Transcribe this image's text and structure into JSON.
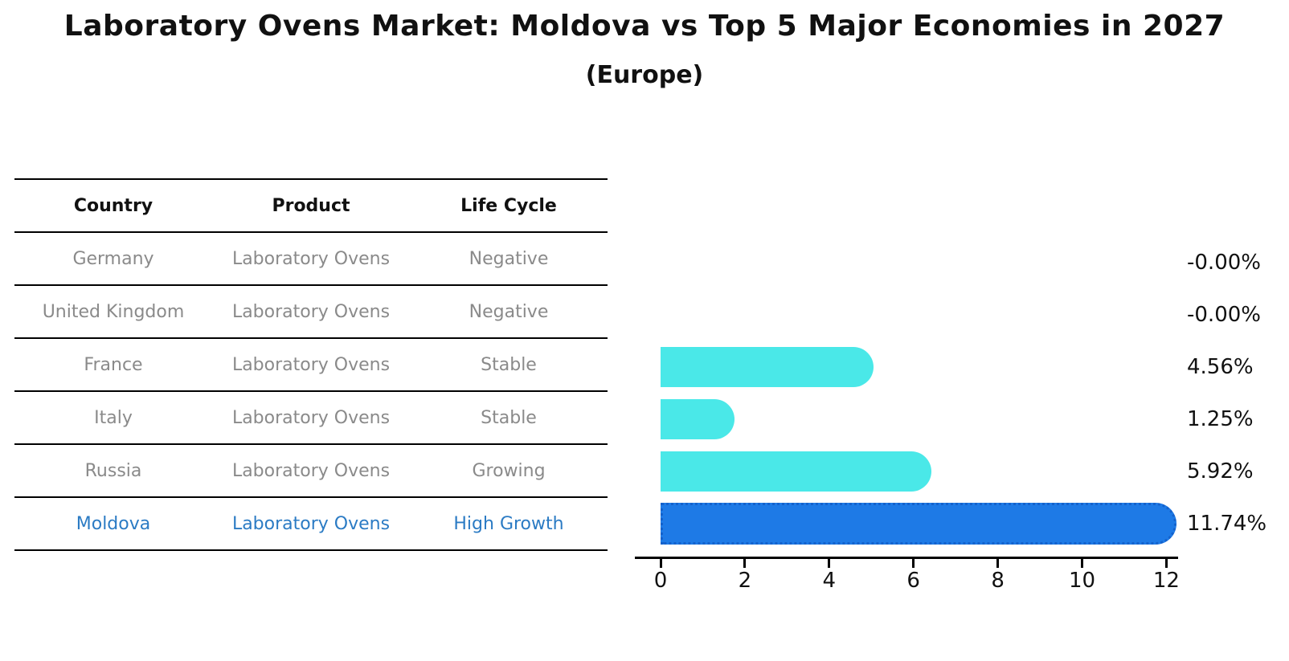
{
  "header": {
    "title": "Laboratory Ovens Market: Moldova vs Top 5 Major Economies in 2027",
    "subtitle": "(Europe)"
  },
  "table": {
    "headers": [
      "Country",
      "Product",
      "Life Cycle"
    ],
    "rows": [
      {
        "country": "Germany",
        "product": "Laboratory Ovens",
        "life_cycle": "Negative",
        "highlight": false
      },
      {
        "country": "United Kingdom",
        "product": "Laboratory Ovens",
        "life_cycle": "Negative",
        "highlight": false
      },
      {
        "country": "France",
        "product": "Laboratory Ovens",
        "life_cycle": "Stable",
        "highlight": false
      },
      {
        "country": "Italy",
        "product": "Laboratory Ovens",
        "life_cycle": "Stable",
        "highlight": false
      },
      {
        "country": "Russia",
        "product": "Laboratory Ovens",
        "life_cycle": "Growing",
        "highlight": false
      },
      {
        "country": "Moldova",
        "product": "Laboratory Ovens",
        "life_cycle": "High Growth",
        "highlight": true
      }
    ]
  },
  "chart_data": {
    "type": "bar",
    "orientation": "horizontal",
    "title": "Laboratory Ovens Market: Moldova vs Top 5 Major Economies in 2027",
    "subtitle": "(Europe)",
    "categories": [
      "Germany",
      "United Kingdom",
      "France",
      "Italy",
      "Russia",
      "Moldova"
    ],
    "values": [
      -0.0,
      -0.0,
      4.56,
      1.25,
      5.92,
      11.74
    ],
    "value_labels": [
      "-0.00%",
      "-0.00%",
      "4.56%",
      "1.25%",
      "5.92%",
      "11.74%"
    ],
    "xlabel": "",
    "ylabel": "",
    "xlim": [
      0,
      12
    ],
    "x_ticks": [
      0,
      2,
      4,
      6,
      8,
      10,
      12
    ],
    "x_tick_labels": [
      "0",
      "2",
      "4",
      "6",
      "8",
      "10",
      "12"
    ],
    "grid": false,
    "legend": false,
    "bar_colors": [
      "#4ae8e8",
      "#4ae8e8",
      "#4ae8e8",
      "#4ae8e8",
      "#4ae8e8",
      "#1e7ae6"
    ],
    "highlight_index": 5,
    "highlight_border_color": "#1462cc"
  },
  "colors": {
    "bar_cyan": "#4ae8e8",
    "bar_blue": "#1e7ae6",
    "bar_blue_border": "#1462cc",
    "highlight_text": "#2b7bc4",
    "muted_text": "#8a8a8a",
    "text": "#111111",
    "axis": "#000000"
  }
}
